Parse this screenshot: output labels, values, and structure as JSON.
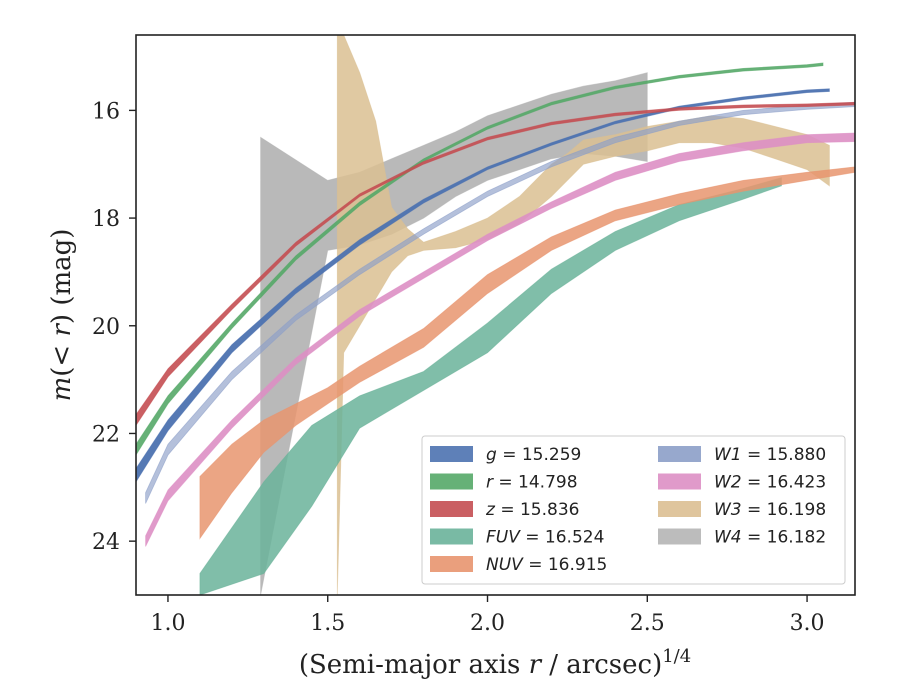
{
  "chart_data": {
    "type": "area",
    "title": "",
    "xlabel": "(Semi-major axis r / arcsec)",
    "xlabel_italic_var": "r",
    "xlabel_pre": "(Semi-major axis ",
    "xlabel_post": " / arcsec)",
    "xlabel_sup": "1/4",
    "ylabel_pre": "m(< ",
    "ylabel_var": "r",
    "ylabel_post": ") (mag)",
    "xlim": [
      0.9,
      3.15
    ],
    "ylim": [
      25.0,
      14.6
    ],
    "y_inverted": true,
    "xticks": [
      1.0,
      1.5,
      2.0,
      2.5,
      3.0
    ],
    "xtick_labels": [
      "1.0",
      "1.5",
      "2.0",
      "2.5",
      "3.0"
    ],
    "yticks": [
      16,
      18,
      20,
      22,
      24
    ],
    "ytick_labels": [
      "16",
      "18",
      "20",
      "22",
      "24"
    ],
    "grid": false,
    "legend_position": "lower-right",
    "series": [
      {
        "name": "g",
        "value_label": "= 15.259",
        "color": "#4c72b0",
        "x": [
          0.9,
          1.0,
          1.2,
          1.4,
          1.6,
          1.8,
          2.0,
          2.2,
          2.4,
          2.6,
          2.8,
          3.0,
          3.07
        ],
        "lo": [
          22.65,
          21.75,
          20.35,
          19.3,
          18.4,
          17.65,
          17.05,
          16.6,
          16.2,
          15.92,
          15.75,
          15.62,
          15.6
        ],
        "hi": [
          22.9,
          21.95,
          20.5,
          19.4,
          18.5,
          17.72,
          17.1,
          16.65,
          16.25,
          15.97,
          15.8,
          15.67,
          15.65
        ]
      },
      {
        "name": "r",
        "value_label": "= 14.798",
        "color": "#55a868",
        "x": [
          0.9,
          1.0,
          1.2,
          1.4,
          1.6,
          1.8,
          2.0,
          2.2,
          2.4,
          2.6,
          2.8,
          3.0,
          3.05
        ],
        "lo": [
          22.2,
          21.3,
          19.95,
          18.7,
          17.7,
          16.9,
          16.3,
          15.85,
          15.55,
          15.35,
          15.22,
          15.15,
          15.12
        ],
        "hi": [
          22.4,
          21.45,
          20.05,
          18.78,
          17.77,
          16.95,
          16.35,
          15.9,
          15.6,
          15.4,
          15.27,
          15.2,
          15.17
        ]
      },
      {
        "name": "z",
        "value_label": "= 15.836",
        "color": "#c44e52",
        "x": [
          0.9,
          1.0,
          1.2,
          1.4,
          1.6,
          1.8,
          2.0,
          2.2,
          2.4,
          2.6,
          2.8,
          3.0,
          3.15
        ],
        "lo": [
          21.65,
          20.8,
          19.6,
          18.45,
          17.55,
          16.95,
          16.5,
          16.22,
          16.05,
          15.95,
          15.9,
          15.88,
          15.85
        ],
        "hi": [
          21.85,
          20.95,
          19.7,
          18.52,
          17.6,
          17.0,
          16.55,
          16.27,
          16.1,
          16.0,
          15.95,
          15.93,
          15.9
        ]
      },
      {
        "name": "FUV",
        "value_label": "= 16.524",
        "color": "#6ab39a",
        "x": [
          1.1,
          1.3,
          1.45,
          1.6,
          1.8,
          2.0,
          2.2,
          2.4,
          2.6,
          2.8,
          2.92
        ],
        "lo": [
          24.6,
          22.9,
          21.85,
          21.3,
          20.85,
          19.95,
          18.95,
          18.25,
          17.75,
          17.45,
          17.25
        ],
        "hi": [
          25.0,
          24.6,
          23.35,
          21.9,
          21.2,
          20.5,
          19.4,
          18.6,
          18.05,
          17.65,
          17.4
        ]
      },
      {
        "name": "NUV",
        "value_label": "= 16.915",
        "color": "#e8956f",
        "x": [
          1.1,
          1.2,
          1.3,
          1.4,
          1.5,
          1.6,
          1.8,
          2.0,
          2.2,
          2.4,
          2.6,
          2.8,
          3.0,
          3.15
        ],
        "lo": [
          22.8,
          22.2,
          21.75,
          21.45,
          21.15,
          20.75,
          20.05,
          19.05,
          18.35,
          17.85,
          17.55,
          17.3,
          17.15,
          17.05
        ],
        "hi": [
          23.95,
          23.1,
          22.35,
          21.85,
          21.45,
          21.05,
          20.4,
          19.4,
          18.6,
          18.05,
          17.75,
          17.5,
          17.3,
          17.15
        ]
      },
      {
        "name": "W1",
        "value_label": "= 15.880",
        "color": "#8c9ec8",
        "x": [
          0.93,
          1.0,
          1.2,
          1.4,
          1.6,
          1.8,
          2.0,
          2.2,
          2.4,
          2.6,
          2.8,
          3.0,
          3.15
        ],
        "lo": [
          23.1,
          22.2,
          20.85,
          19.8,
          18.95,
          18.2,
          17.5,
          16.95,
          16.5,
          16.2,
          16.0,
          15.9,
          15.85
        ],
        "hi": [
          23.3,
          22.4,
          21.0,
          19.9,
          19.05,
          18.3,
          17.6,
          17.05,
          16.6,
          16.28,
          16.08,
          15.98,
          15.93
        ]
      },
      {
        "name": "W2",
        "value_label": "= 16.423",
        "color": "#dd8fc4",
        "x": [
          0.93,
          1.0,
          1.2,
          1.4,
          1.6,
          1.8,
          2.0,
          2.2,
          2.4,
          2.6,
          2.8,
          3.0,
          3.15
        ],
        "lo": [
          23.9,
          23.05,
          21.75,
          20.6,
          19.7,
          19.0,
          18.3,
          17.7,
          17.15,
          16.8,
          16.6,
          16.45,
          16.42
        ],
        "hi": [
          24.1,
          23.25,
          21.9,
          20.72,
          19.82,
          19.12,
          18.42,
          17.82,
          17.3,
          16.95,
          16.75,
          16.6,
          16.58
        ]
      },
      {
        "name": "W3",
        "value_label": "= 16.198",
        "color": "#dbbf92",
        "x": [
          1.53,
          1.55,
          1.6,
          1.65,
          1.7,
          1.75,
          1.8,
          1.9,
          2.0,
          2.1,
          2.2,
          2.25,
          2.3,
          2.4,
          2.5,
          2.6,
          2.7,
          2.8,
          2.9,
          3.0,
          3.07
        ],
        "lo": [
          14.6,
          14.6,
          15.3,
          16.2,
          17.8,
          18.2,
          18.45,
          18.25,
          18.0,
          17.6,
          17.0,
          16.8,
          16.55,
          16.45,
          16.3,
          16.2,
          16.1,
          16.15,
          16.3,
          16.45,
          16.65
        ],
        "hi": [
          25.0,
          20.5,
          20.0,
          19.5,
          19.0,
          18.7,
          18.6,
          18.55,
          18.4,
          18.1,
          17.6,
          17.3,
          17.0,
          16.85,
          16.75,
          16.6,
          16.6,
          16.7,
          16.9,
          17.1,
          17.4
        ]
      },
      {
        "name": "W4",
        "value_label": "= 16.182",
        "color": "#b5b5b5",
        "x": [
          1.29,
          1.5,
          1.6,
          1.7,
          1.8,
          1.9,
          2.0,
          2.1,
          2.2,
          2.3,
          2.4,
          2.5
        ],
        "lo": [
          16.5,
          17.3,
          17.15,
          16.9,
          16.65,
          16.4,
          16.1,
          15.9,
          15.7,
          15.55,
          15.45,
          15.3
        ],
        "hi": [
          25.0,
          18.6,
          18.5,
          18.3,
          18.0,
          17.6,
          17.3,
          17.1,
          16.9,
          16.8,
          16.85,
          16.95
        ]
      }
    ]
  }
}
